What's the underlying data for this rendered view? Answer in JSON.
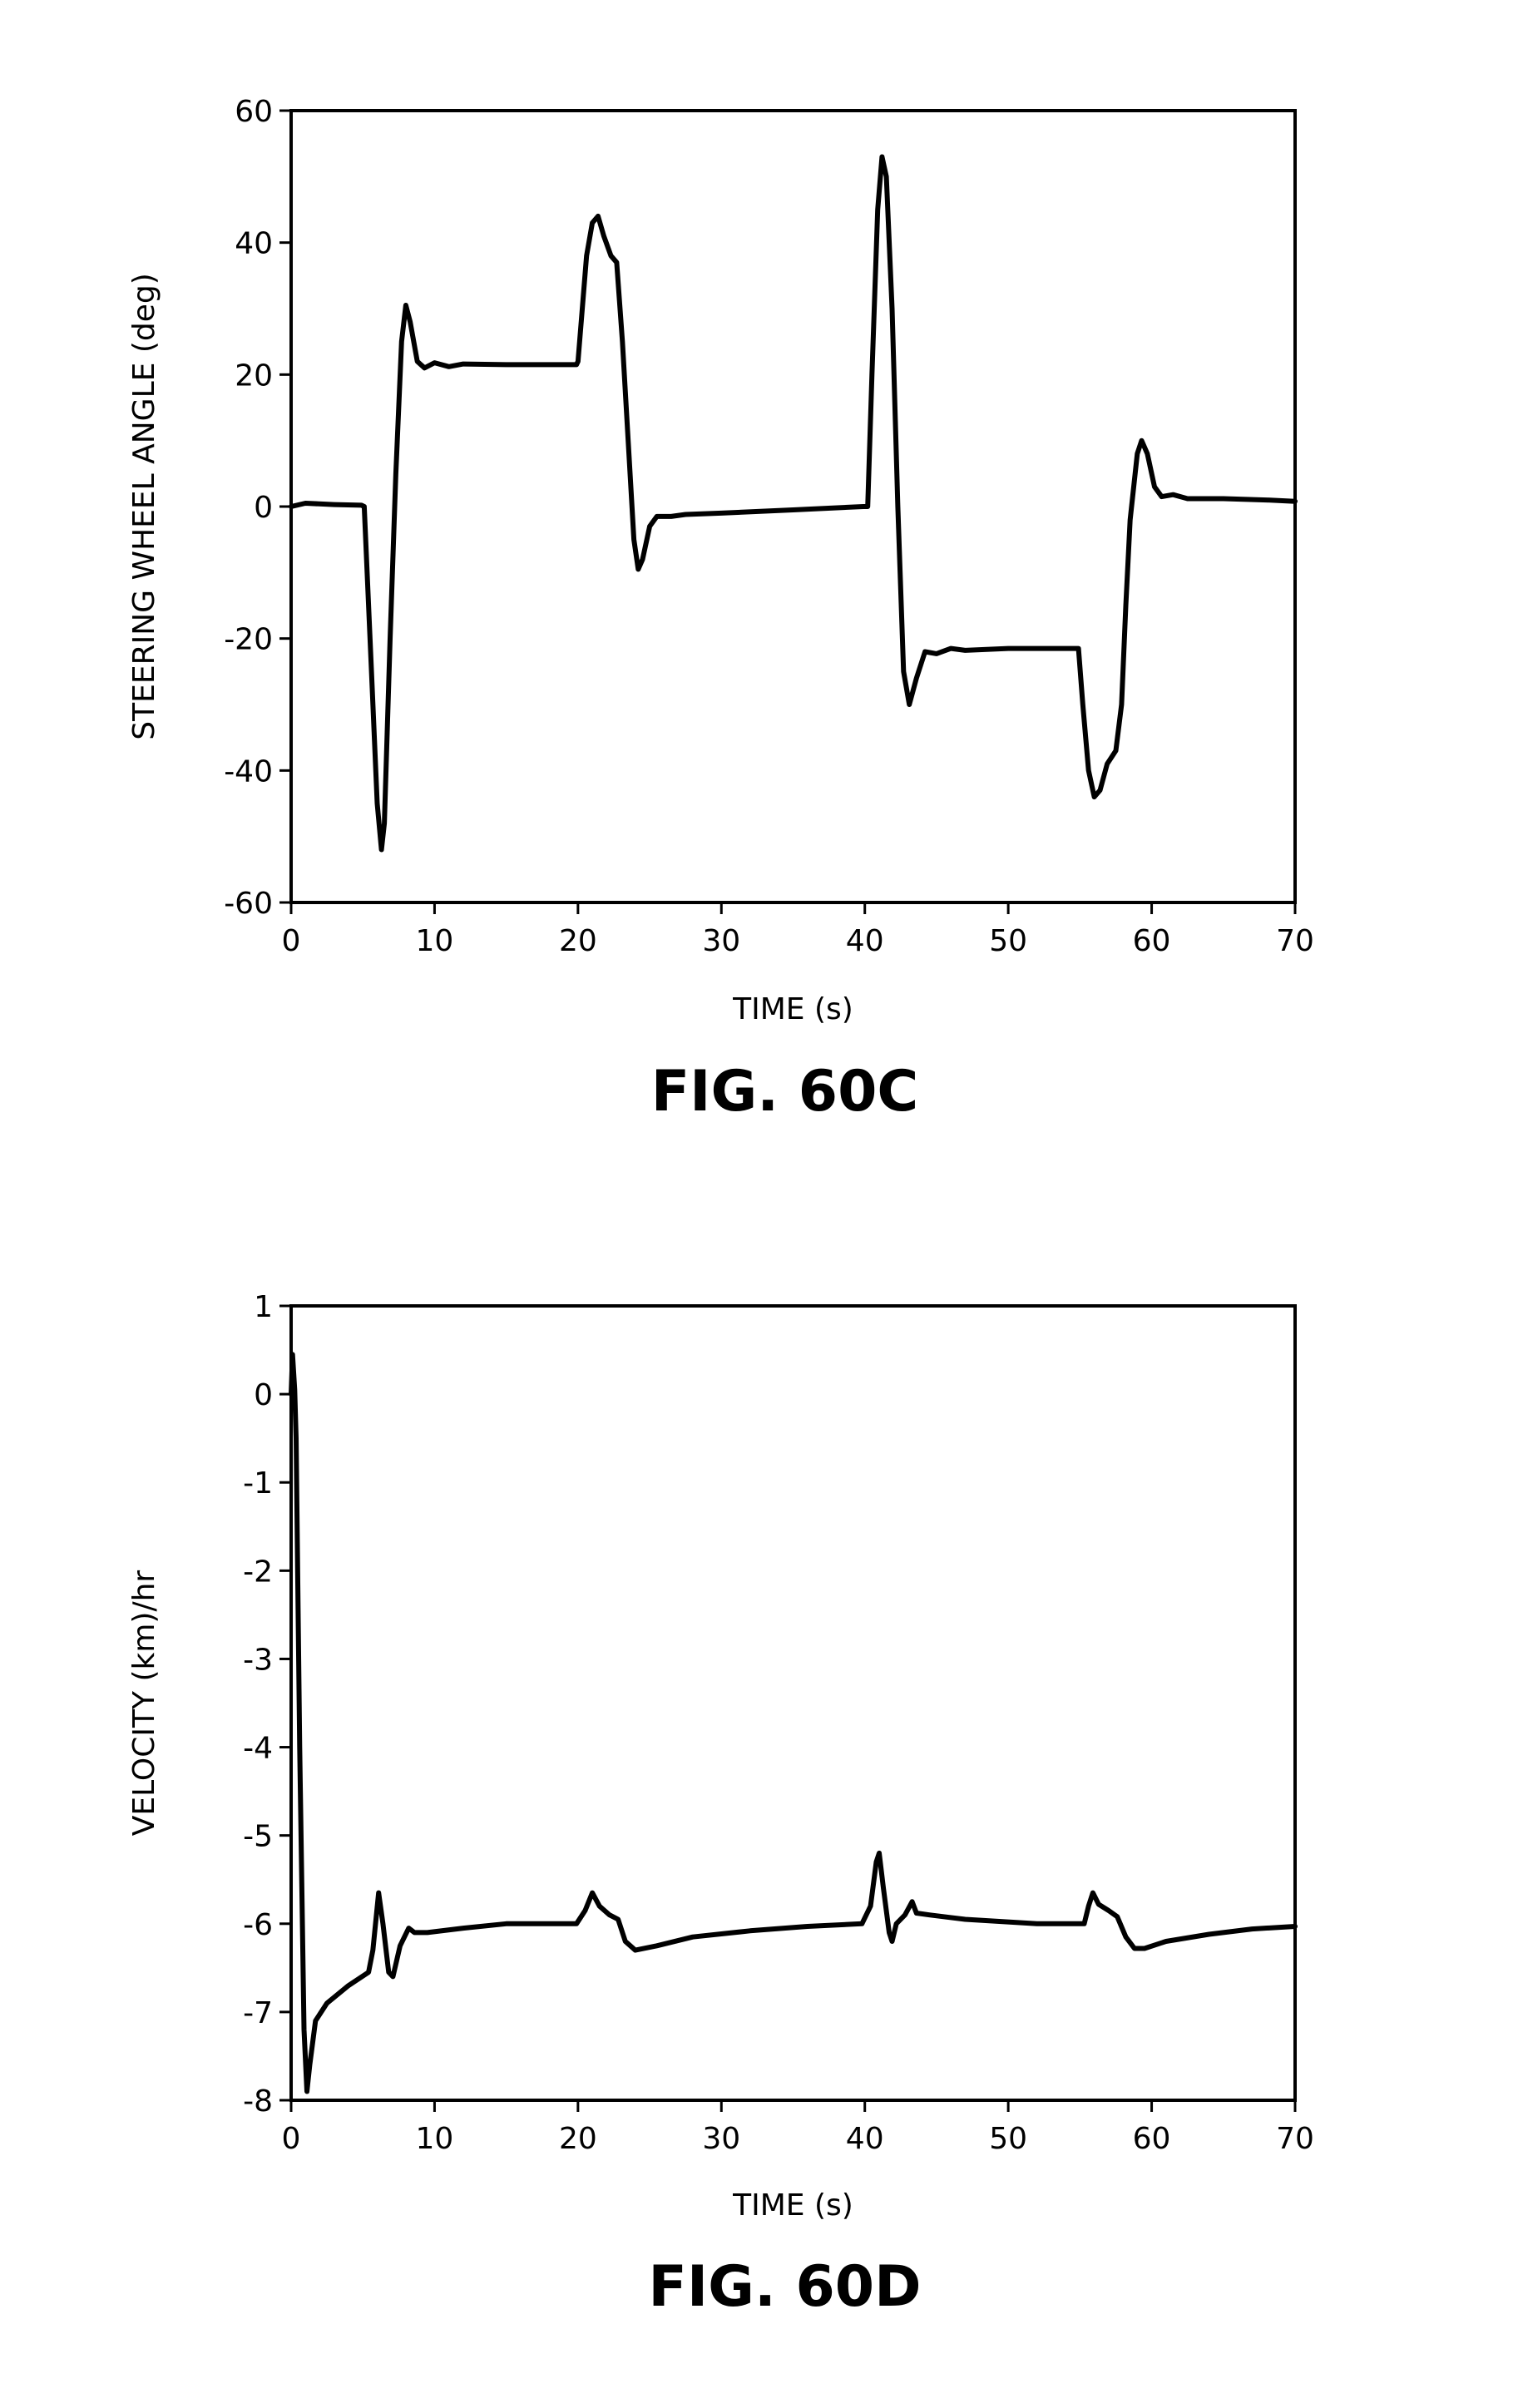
{
  "chart_data": [
    {
      "type": "line",
      "figure_label": "FIG. 60C",
      "xlabel": "TIME (s)",
      "ylabel": "STEERING WHEEL ANGLE (deg)",
      "xlim": [
        0,
        70
      ],
      "ylim": [
        -60,
        60
      ],
      "xticks": [
        0,
        10,
        20,
        30,
        40,
        50,
        60,
        70
      ],
      "yticks": [
        -60,
        -40,
        -20,
        0,
        20,
        40,
        60
      ],
      "grid": false,
      "series": [
        {
          "points": [
            [
              0,
              0
            ],
            [
              1,
              0.5
            ],
            [
              3,
              0.3
            ],
            [
              4.9,
              0.2
            ],
            [
              5.1,
              0
            ],
            [
              5.6,
              -25
            ],
            [
              6.0,
              -45
            ],
            [
              6.3,
              -52
            ],
            [
              6.5,
              -48
            ],
            [
              6.9,
              -20
            ],
            [
              7.3,
              5
            ],
            [
              7.7,
              25
            ],
            [
              8.0,
              30.5
            ],
            [
              8.3,
              28
            ],
            [
              8.8,
              22
            ],
            [
              9.3,
              21
            ],
            [
              10,
              21.8
            ],
            [
              11,
              21.2
            ],
            [
              12,
              21.6
            ],
            [
              15,
              21.5
            ],
            [
              18,
              21.5
            ],
            [
              19.9,
              21.5
            ],
            [
              20.0,
              22
            ],
            [
              20.6,
              38
            ],
            [
              21.0,
              43
            ],
            [
              21.4,
              44
            ],
            [
              21.8,
              41
            ],
            [
              22.3,
              38
            ],
            [
              22.7,
              37
            ],
            [
              23.1,
              25
            ],
            [
              23.5,
              10
            ],
            [
              23.9,
              -5
            ],
            [
              24.2,
              -9.5
            ],
            [
              24.5,
              -8
            ],
            [
              25,
              -3
            ],
            [
              25.5,
              -1.5
            ],
            [
              26.5,
              -1.5
            ],
            [
              27.5,
              -1.2
            ],
            [
              30,
              -1
            ],
            [
              35,
              -0.5
            ],
            [
              39.9,
              0
            ],
            [
              40.2,
              0
            ],
            [
              40.5,
              20
            ],
            [
              40.9,
              45
            ],
            [
              41.2,
              53
            ],
            [
              41.5,
              50
            ],
            [
              41.9,
              30
            ],
            [
              42.3,
              0
            ],
            [
              42.7,
              -25
            ],
            [
              43.1,
              -30
            ],
            [
              43.6,
              -26
            ],
            [
              44.2,
              -22
            ],
            [
              45,
              -22.3
            ],
            [
              46,
              -21.5
            ],
            [
              47,
              -21.8
            ],
            [
              50,
              -21.5
            ],
            [
              54.9,
              -21.5
            ],
            [
              55.2,
              -30
            ],
            [
              55.6,
              -40
            ],
            [
              56.0,
              -44
            ],
            [
              56.4,
              -43
            ],
            [
              56.9,
              -39
            ],
            [
              57.5,
              -37
            ],
            [
              57.9,
              -30
            ],
            [
              58.2,
              -15
            ],
            [
              58.5,
              -2
            ],
            [
              59.0,
              8
            ],
            [
              59.3,
              10
            ],
            [
              59.7,
              8
            ],
            [
              60.2,
              3
            ],
            [
              60.7,
              1.5
            ],
            [
              61.5,
              1.8
            ],
            [
              62.5,
              1.2
            ],
            [
              65,
              1.2
            ],
            [
              68,
              1
            ],
            [
              70,
              0.8
            ]
          ]
        }
      ]
    },
    {
      "type": "line",
      "figure_label": "FIG. 60D",
      "xlabel": "TIME (s)",
      "ylabel": "VELOCITY (km)/hr",
      "xlim": [
        0,
        70
      ],
      "ylim": [
        -8,
        1
      ],
      "xticks": [
        0,
        10,
        20,
        30,
        40,
        50,
        60,
        70
      ],
      "yticks": [
        -8,
        -7,
        -6,
        -5,
        -4,
        -3,
        -2,
        -1,
        0,
        1
      ],
      "grid": false,
      "series": [
        {
          "points": [
            [
              0,
              0
            ],
            [
              0.1,
              0.45
            ],
            [
              0.25,
              0.05
            ],
            [
              0.35,
              -0.5
            ],
            [
              0.6,
              -4
            ],
            [
              0.9,
              -7.2
            ],
            [
              1.1,
              -7.9
            ],
            [
              1.3,
              -7.6
            ],
            [
              1.7,
              -7.1
            ],
            [
              2.5,
              -6.9
            ],
            [
              4,
              -6.7
            ],
            [
              5.4,
              -6.55
            ],
            [
              5.7,
              -6.3
            ],
            [
              6.1,
              -5.65
            ],
            [
              6.4,
              -6.0
            ],
            [
              6.8,
              -6.55
            ],
            [
              7.1,
              -6.6
            ],
            [
              7.6,
              -6.25
            ],
            [
              8.2,
              -6.05
            ],
            [
              8.6,
              -6.1
            ],
            [
              9.5,
              -6.1
            ],
            [
              12,
              -6.05
            ],
            [
              15,
              -6.0
            ],
            [
              19.9,
              -6.0
            ],
            [
              20.5,
              -5.85
            ],
            [
              21.0,
              -5.65
            ],
            [
              21.5,
              -5.8
            ],
            [
              22.2,
              -5.9
            ],
            [
              22.8,
              -5.95
            ],
            [
              23.3,
              -6.2
            ],
            [
              24.0,
              -6.3
            ],
            [
              25.5,
              -6.25
            ],
            [
              28,
              -6.15
            ],
            [
              32,
              -6.08
            ],
            [
              36,
              -6.03
            ],
            [
              39.8,
              -6.0
            ],
            [
              40.4,
              -5.8
            ],
            [
              40.8,
              -5.3
            ],
            [
              41.0,
              -5.2
            ],
            [
              41.3,
              -5.6
            ],
            [
              41.7,
              -6.1
            ],
            [
              41.9,
              -6.2
            ],
            [
              42.2,
              -6.0
            ],
            [
              42.8,
              -5.9
            ],
            [
              43.3,
              -5.75
            ],
            [
              43.6,
              -5.88
            ],
            [
              44.5,
              -5.9
            ],
            [
              47,
              -5.95
            ],
            [
              52,
              -6.0
            ],
            [
              55.3,
              -6.0
            ],
            [
              55.6,
              -5.8
            ],
            [
              55.9,
              -5.65
            ],
            [
              56.3,
              -5.78
            ],
            [
              57.0,
              -5.85
            ],
            [
              57.6,
              -5.92
            ],
            [
              58.2,
              -6.15
            ],
            [
              58.8,
              -6.28
            ],
            [
              59.5,
              -6.28
            ],
            [
              61,
              -6.2
            ],
            [
              64,
              -6.12
            ],
            [
              67,
              -6.06
            ],
            [
              70,
              -6.03
            ]
          ]
        }
      ]
    }
  ]
}
